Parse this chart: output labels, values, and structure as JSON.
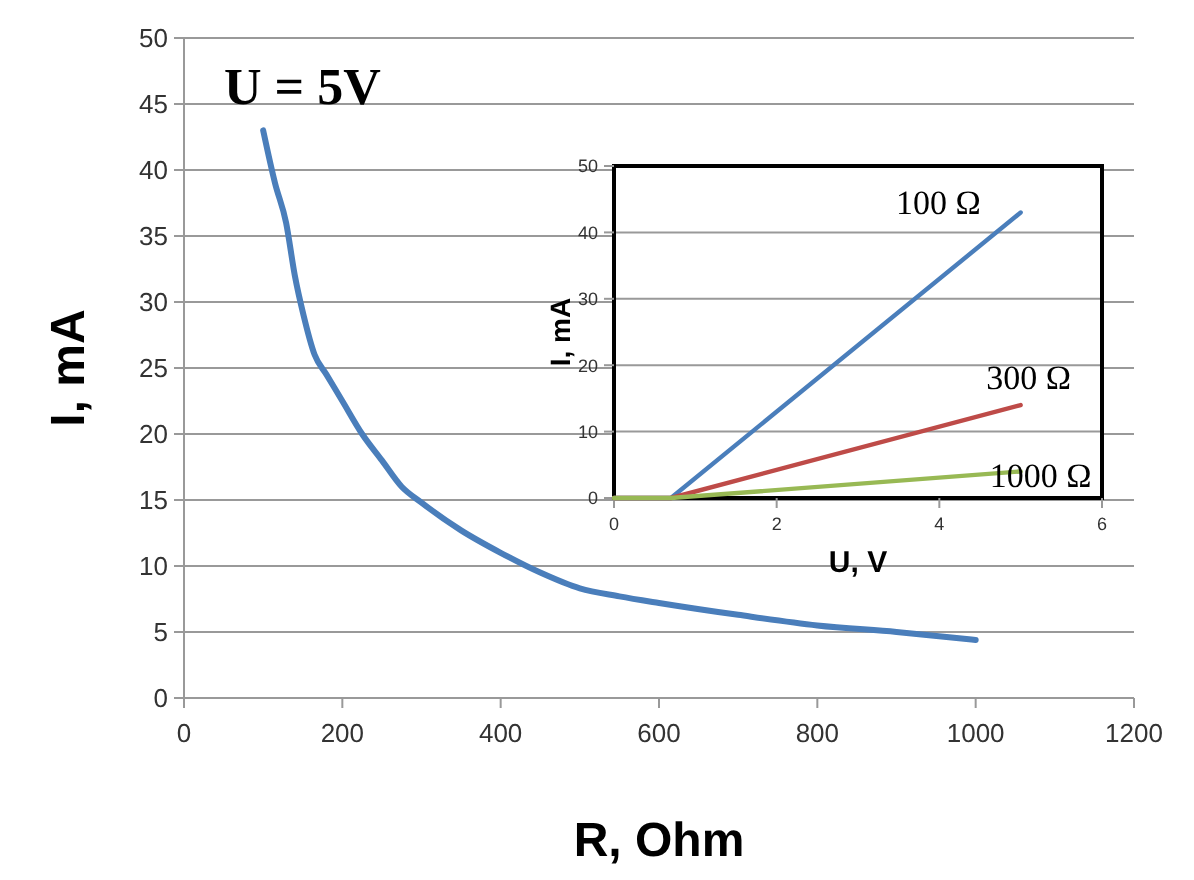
{
  "chart_data": [
    {
      "type": "line",
      "title": "U = 5V",
      "xlabel": "R, Ohm",
      "ylabel": "I, mA",
      "xlim": [
        0,
        1200
      ],
      "xticks": [
        0,
        200,
        400,
        600,
        800,
        1000,
        1200
      ],
      "ylim": [
        0,
        50
      ],
      "yticks": [
        0,
        5,
        10,
        15,
        20,
        25,
        30,
        35,
        40,
        45,
        50
      ],
      "grid": "y",
      "marker": "none",
      "line_style": "solid",
      "series": [
        {
          "color": "#4a7ebb",
          "x": [
            100,
            115,
            129,
            140,
            151,
            165,
            180,
            200,
            225,
            250,
            275,
            300,
            350,
            400,
            450,
            500,
            550,
            600,
            700,
            800,
            900,
            1000
          ],
          "values": [
            43,
            39,
            36,
            32,
            29,
            26,
            24.5,
            22.5,
            20,
            18,
            16,
            14.8,
            12.7,
            11,
            9.5,
            8.3,
            7.7,
            7.2,
            6.3,
            5.5,
            5,
            4.4
          ]
        }
      ]
    },
    {
      "type": "line",
      "xlabel": "U, V",
      "ylabel": "I, mA",
      "xlim": [
        0,
        6
      ],
      "xticks": [
        0,
        2,
        4,
        6
      ],
      "ylim": [
        0,
        50
      ],
      "yticks": [
        0,
        10,
        20,
        30,
        40,
        50
      ],
      "grid": "y",
      "marker": "none",
      "line_style": "solid",
      "series": [
        {
          "name": "100 Ω",
          "color": "#4a7ebb",
          "x": [
            0,
            0.7,
            5
          ],
          "values": [
            0,
            0,
            43
          ]
        },
        {
          "name": "300 Ω",
          "color": "#be4b48",
          "x": [
            0,
            0.7,
            5
          ],
          "values": [
            0,
            0,
            14
          ]
        },
        {
          "name": "1000 Ω",
          "color": "#98b954",
          "x": [
            0,
            0.7,
            5
          ],
          "values": [
            0,
            0,
            4
          ]
        }
      ]
    }
  ]
}
